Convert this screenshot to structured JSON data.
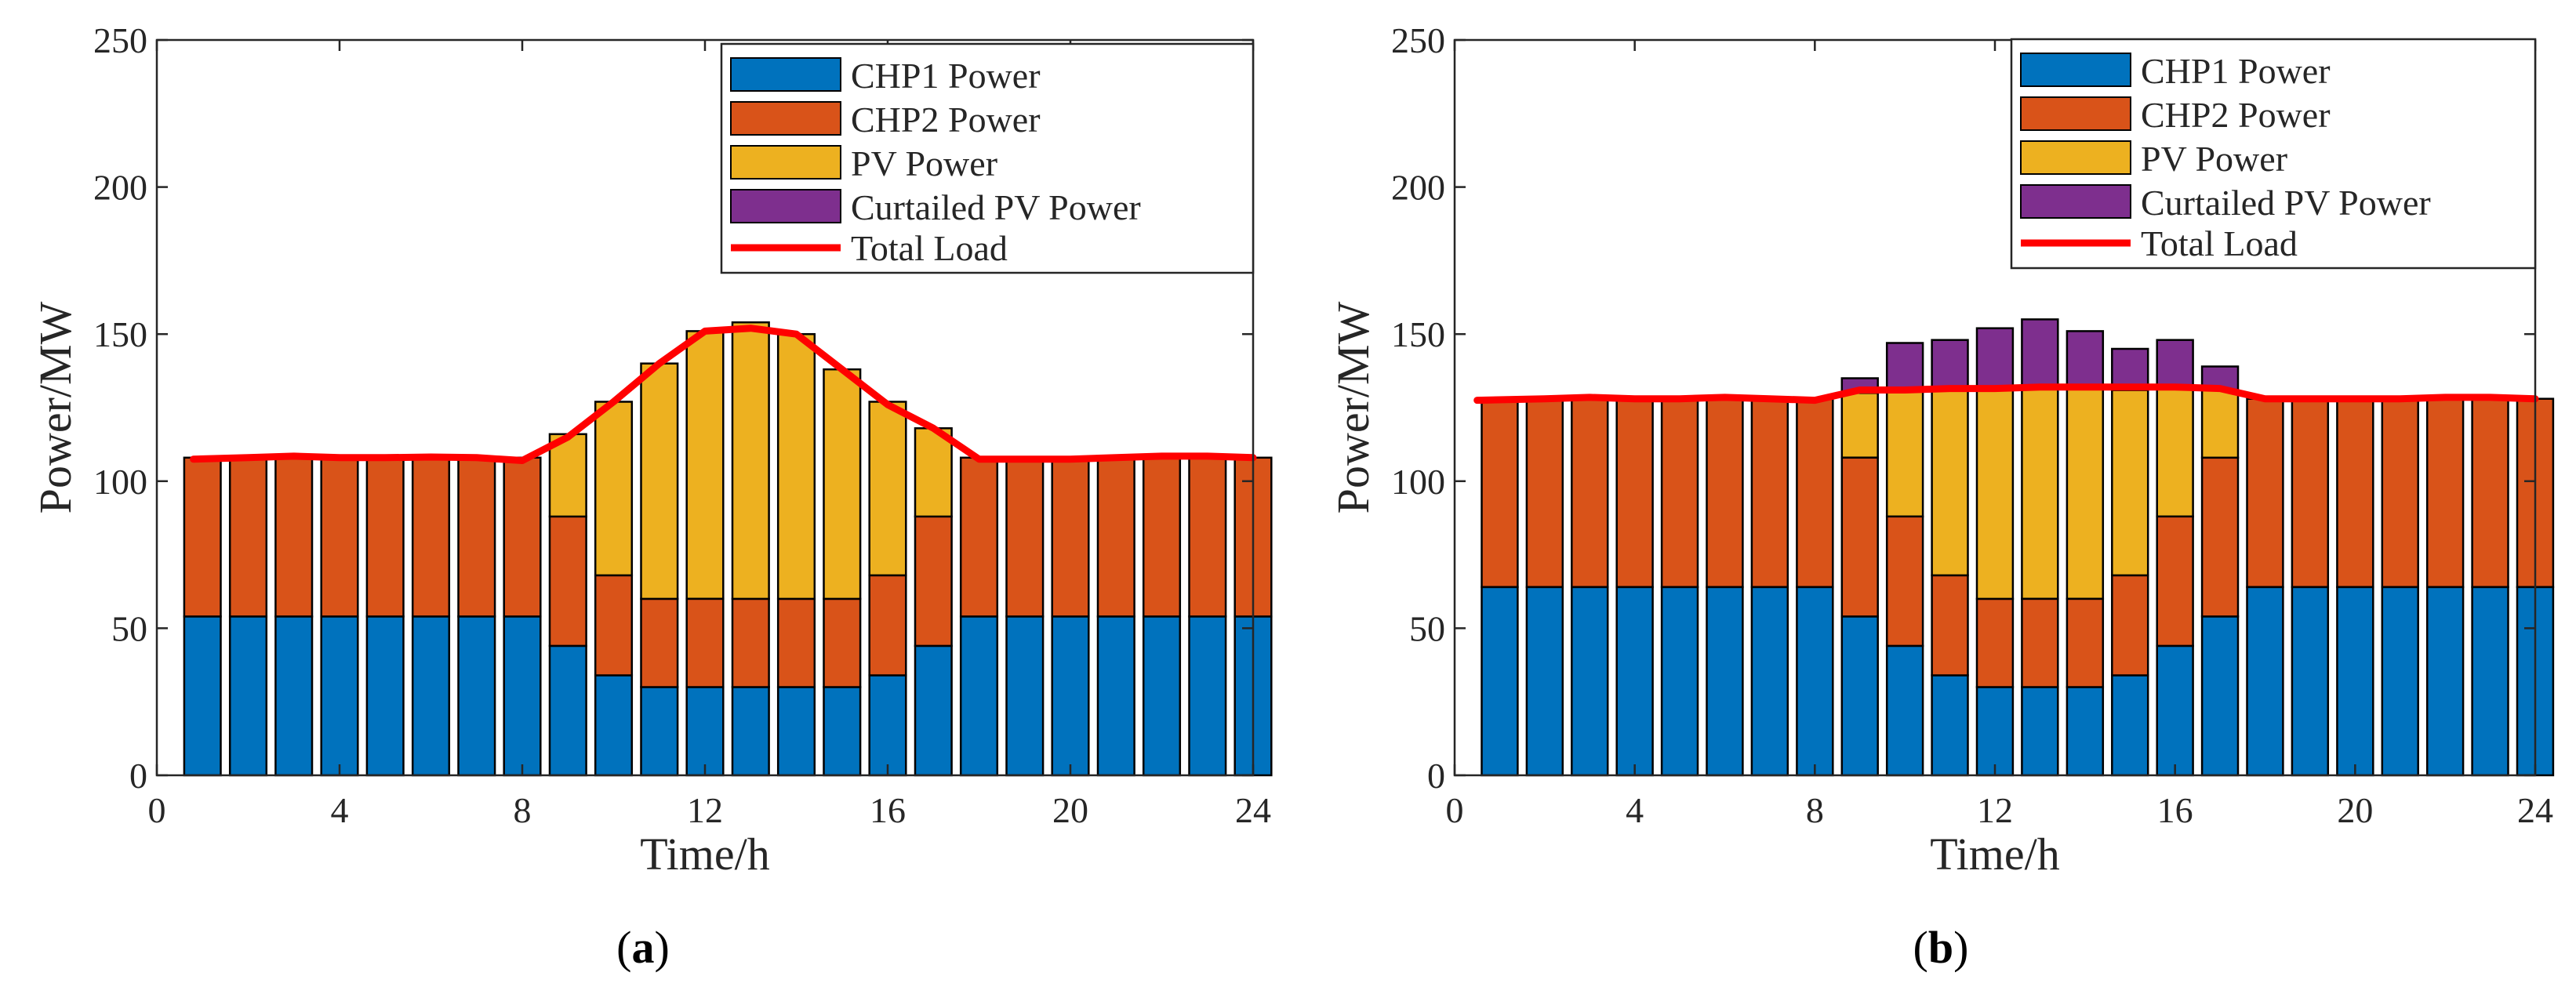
{
  "chart_data": [
    {
      "type": "bar",
      "stacked": true,
      "panel_label": "a",
      "xlabel": "Time/h",
      "ylabel": "Power/MW",
      "xlim": [
        0,
        24
      ],
      "ylim": [
        0,
        250
      ],
      "xticks": [
        0,
        4,
        8,
        12,
        16,
        20,
        24
      ],
      "yticks": [
        0,
        50,
        100,
        150,
        200,
        250
      ],
      "grid": false,
      "legend_position": "top-right",
      "x": [
        1,
        2,
        3,
        4,
        5,
        6,
        7,
        8,
        9,
        10,
        11,
        12,
        13,
        14,
        15,
        16,
        17,
        18,
        19,
        20,
        21,
        22,
        23,
        24
      ],
      "series": [
        {
          "name": "CHP1 Power",
          "color": "#0072BD",
          "values": [
            54,
            54,
            54,
            54,
            54,
            54,
            54,
            54,
            44,
            34,
            30,
            30,
            30,
            30,
            30,
            34,
            44,
            54,
            54,
            54,
            54,
            54,
            54,
            54
          ]
        },
        {
          "name": "CHP2 Power",
          "color": "#D95319",
          "values": [
            54,
            54,
            54,
            54,
            54,
            54,
            54,
            54,
            44,
            34,
            30,
            30,
            30,
            30,
            30,
            34,
            44,
            54,
            54,
            54,
            54,
            54,
            54,
            54
          ]
        },
        {
          "name": "PV Power",
          "color": "#EDB120",
          "values": [
            0,
            0,
            0,
            0,
            0,
            0,
            0,
            0,
            28,
            59,
            80,
            91,
            94,
            90,
            78,
            59,
            30,
            0,
            0,
            0,
            0,
            0,
            0,
            0
          ]
        },
        {
          "name": "Curtailed PV Power",
          "color": "#7E2F8E",
          "values": [
            0,
            0,
            0,
            0,
            0,
            0,
            0,
            0,
            0,
            0,
            0,
            0,
            0,
            0,
            0,
            0,
            0,
            0,
            0,
            0,
            0,
            0,
            0,
            0
          ]
        }
      ],
      "line": {
        "name": "Total Load",
        "color": "#FF0000",
        "points": [
          [
            0.8,
            107.5
          ],
          [
            2,
            108
          ],
          [
            3,
            108.5
          ],
          [
            4,
            108
          ],
          [
            5,
            108
          ],
          [
            6,
            108.2
          ],
          [
            7,
            108
          ],
          [
            8,
            107
          ],
          [
            9,
            115
          ],
          [
            10,
            127
          ],
          [
            11,
            140
          ],
          [
            12,
            151
          ],
          [
            13,
            152
          ],
          [
            14,
            150
          ],
          [
            15,
            138
          ],
          [
            16,
            126
          ],
          [
            17,
            118
          ],
          [
            18,
            107.5
          ],
          [
            19,
            107.5
          ],
          [
            20,
            107.5
          ],
          [
            21,
            108
          ],
          [
            22,
            108.5
          ],
          [
            23,
            108.5
          ],
          [
            24,
            108
          ]
        ]
      }
    },
    {
      "type": "bar",
      "stacked": true,
      "panel_label": "b",
      "xlabel": "Time/h",
      "ylabel": "Power/MW",
      "xlim": [
        0,
        24
      ],
      "ylim": [
        0,
        250
      ],
      "xticks": [
        0,
        4,
        8,
        12,
        16,
        20,
        24
      ],
      "yticks": [
        0,
        50,
        100,
        150,
        200,
        250
      ],
      "grid": false,
      "legend_position": "top-right",
      "x": [
        1,
        2,
        3,
        4,
        5,
        6,
        7,
        8,
        9,
        10,
        11,
        12,
        13,
        14,
        15,
        16,
        17,
        18,
        19,
        20,
        21,
        22,
        23,
        24
      ],
      "series": [
        {
          "name": "CHP1 Power",
          "color": "#0072BD",
          "values": [
            64,
            64,
            64,
            64,
            64,
            64,
            64,
            64,
            54,
            44,
            34,
            30,
            30,
            30,
            34,
            44,
            54,
            64,
            64,
            64,
            64,
            64,
            64,
            64
          ]
        },
        {
          "name": "CHP2 Power",
          "color": "#D95319",
          "values": [
            64,
            64,
            64,
            64,
            64,
            64,
            64,
            64,
            54,
            44,
            34,
            30,
            30,
            30,
            34,
            44,
            54,
            64,
            64,
            64,
            64,
            64,
            64,
            64
          ]
        },
        {
          "name": "PV Power",
          "color": "#EDB120",
          "values": [
            0,
            0,
            0,
            0,
            0,
            0,
            0,
            0,
            22,
            43,
            63,
            71,
            72,
            72,
            63,
            44,
            23,
            0,
            0,
            0,
            0,
            0,
            0,
            0
          ]
        },
        {
          "name": "Curtailed PV Power",
          "color": "#7E2F8E",
          "values": [
            0,
            0,
            0,
            0,
            0,
            0,
            0,
            0,
            5,
            16,
            17,
            21,
            23,
            19,
            14,
            16,
            8,
            0,
            0,
            0,
            0,
            0,
            0,
            0
          ]
        }
      ],
      "line": {
        "name": "Total Load",
        "color": "#FF0000",
        "points": [
          [
            0.5,
            127.5
          ],
          [
            2,
            128
          ],
          [
            3,
            128.5
          ],
          [
            4,
            128
          ],
          [
            5,
            128
          ],
          [
            6,
            128.5
          ],
          [
            7,
            128
          ],
          [
            8,
            127.5
          ],
          [
            9,
            131
          ],
          [
            10,
            131
          ],
          [
            11,
            131.5
          ],
          [
            12,
            131.5
          ],
          [
            13,
            132
          ],
          [
            14,
            132
          ],
          [
            15,
            132
          ],
          [
            16,
            132
          ],
          [
            17,
            131.5
          ],
          [
            18,
            128
          ],
          [
            19,
            128
          ],
          [
            20,
            128
          ],
          [
            21,
            128
          ],
          [
            22,
            128.5
          ],
          [
            23,
            128.5
          ],
          [
            24,
            128
          ]
        ]
      }
    }
  ]
}
